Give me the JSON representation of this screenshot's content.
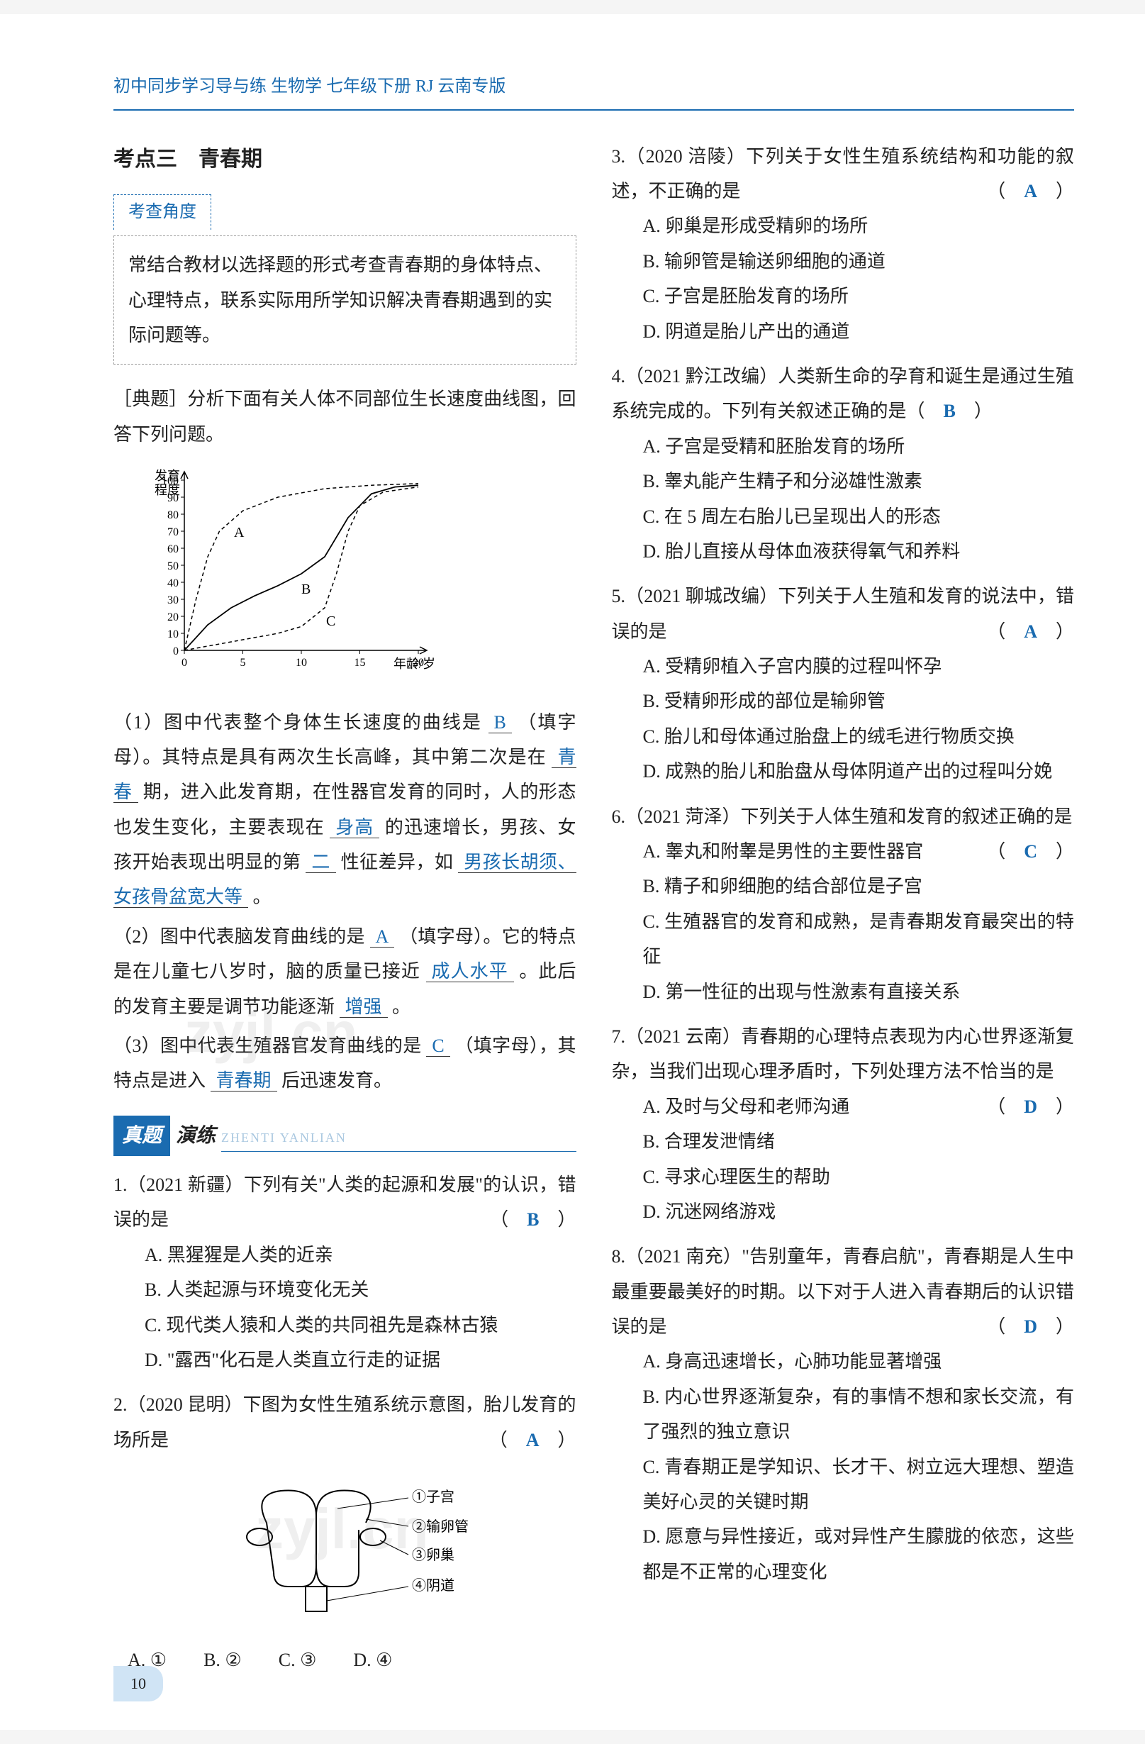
{
  "header": "初中同步学习导与练 生物学 七年级下册 RJ 云南专版",
  "page_number": "10",
  "watermark": "zyjl.cn",
  "left": {
    "kaodian_title": "考点三　青春期",
    "kaocha_label": "考查角度",
    "kaocha_text": "常结合教材以选择题的形式考查青春期的身体特点、心理特点，联系实际用所学知识解决青春期遇到的实际问题等。",
    "dianti_label": "［典题］",
    "dianti_text": "分析下面有关人体不同部位生长速度曲线图，回答下列问题。",
    "chart": {
      "type": "line",
      "y_label_top": "发育程度",
      "x_label": "年龄/岁",
      "y_ticks": [
        0,
        10,
        20,
        30,
        40,
        50,
        60,
        70,
        80,
        90,
        100
      ],
      "x_ticks": [
        0,
        5,
        10,
        15,
        20
      ],
      "series": [
        {
          "name": "A",
          "style": "dashed",
          "points": [
            [
              0,
              0
            ],
            [
              1,
              30
            ],
            [
              2,
              55
            ],
            [
              3,
              70
            ],
            [
              5,
              82
            ],
            [
              8,
              90
            ],
            [
              12,
              95
            ],
            [
              16,
              97
            ],
            [
              20,
              98
            ]
          ]
        },
        {
          "name": "B",
          "style": "solid",
          "points": [
            [
              0,
              0
            ],
            [
              2,
              15
            ],
            [
              4,
              25
            ],
            [
              6,
              32
            ],
            [
              8,
              38
            ],
            [
              10,
              45
            ],
            [
              12,
              55
            ],
            [
              14,
              78
            ],
            [
              16,
              92
            ],
            [
              18,
              96
            ],
            [
              20,
              97
            ]
          ]
        },
        {
          "name": "C",
          "style": "dashed",
          "points": [
            [
              0,
              0
            ],
            [
              4,
              5
            ],
            [
              8,
              10
            ],
            [
              10,
              14
            ],
            [
              12,
              25
            ],
            [
              13,
              45
            ],
            [
              14,
              70
            ],
            [
              15,
              85
            ],
            [
              17,
              93
            ],
            [
              20,
              96
            ]
          ]
        }
      ],
      "colors": {
        "axis": "#000",
        "line": "#000"
      }
    },
    "p1_a": "（1）图中代表整个身体生长速度的曲线是",
    "p1_blank1": "B",
    "p1_b": "（填字母）。其特点是具有两次生长高峰，其中第二次是在",
    "p1_blank2": "青春",
    "p1_c": "期，进入此发育期，在性器官发育的同时，人的形态也发生变化，主要表现在",
    "p1_blank3": "身高",
    "p1_d": "的迅速增长，男孩、女孩开始表现出明显的第",
    "p1_blank4": "二",
    "p1_e": "性征差异，如",
    "p1_blank5": "男孩长胡须、女孩骨盆宽大等",
    "p1_f": "。",
    "p2_a": "（2）图中代表脑发育曲线的是",
    "p2_blank1": "A",
    "p2_b": "（填字母）。它的特点是在儿童七八岁时，脑的质量已接近",
    "p2_blank2": "成人水平",
    "p2_c": "。此后的发育主要是调节功能逐渐",
    "p2_blank3": "增强",
    "p2_d": "。",
    "p3_a": "（3）图中代表生殖器官发育曲线的是",
    "p3_blank1": "C",
    "p3_b": "（填字母），其特点是进入",
    "p3_blank2": "青春期",
    "p3_c": "后迅速发育。",
    "zhenti_zhen": "真题",
    "zhenti_yan": "演练",
    "zhenti_pinyin": "ZHENTI YANLIAN",
    "q1": {
      "stem": "1.（2021 新疆）下列有关\"人类的起源和发展\"的认识，错误的是",
      "answer": "B",
      "opts": [
        "A. 黑猩猩是人类的近亲",
        "B. 人类起源与环境变化无关",
        "C. 现代类人猿和人类的共同祖先是森林古猿",
        "D. \"露西\"化石是人类直立行走的证据"
      ]
    },
    "q2": {
      "stem": "2.（2020 昆明）下图为女性生殖系统示意图，胎儿发育的场所是",
      "answer": "A",
      "labels": [
        "①子宫",
        "②输卵管",
        "③卵巢",
        "④阴道"
      ],
      "opts_inline": "A. ①　　B. ②　　C. ③　　D. ④"
    }
  },
  "right": {
    "q3": {
      "stem": "3.（2020 涪陵）下列关于女性生殖系统结构和功能的叙述，不正确的是",
      "answer": "A",
      "opts": [
        "A. 卵巢是形成受精卵的场所",
        "B. 输卵管是输送卵细胞的通道",
        "C. 子宫是胚胎发育的场所",
        "D. 阴道是胎儿产出的通道"
      ]
    },
    "q4": {
      "stem": "4.（2021 黔江改编）人类新生命的孕育和诞生是通过生殖系统完成的。下列有关叙述正确的是（",
      "answer": "B",
      "stem_end": "）",
      "opts": [
        "A. 子宫是受精和胚胎发育的场所",
        "B. 睾丸能产生精子和分泌雄性激素",
        "C. 在 5 周左右胎儿已呈现出人的形态",
        "D. 胎儿直接从母体血液获得氧气和养料"
      ]
    },
    "q5": {
      "stem": "5.（2021 聊城改编）下列关于人生殖和发育的说法中，错误的是",
      "answer": "A",
      "opts": [
        "A. 受精卵植入子宫内膜的过程叫怀孕",
        "B. 受精卵形成的部位是输卵管",
        "C. 胎儿和母体通过胎盘上的绒毛进行物质交换",
        "D. 成熟的胎儿和胎盘从母体阴道产出的过程叫分娩"
      ]
    },
    "q6": {
      "stem": "6.（2021 菏泽）下列关于人体生殖和发育的叙述正确的是",
      "answer": "C",
      "opts": [
        "A. 睾丸和附睾是男性的主要性器官",
        "B. 精子和卵细胞的结合部位是子宫",
        "C. 生殖器官的发育和成熟，是青春期发育最突出的特征",
        "D. 第一性征的出现与性激素有直接关系"
      ]
    },
    "q7": {
      "stem": "7.（2021 云南）青春期的心理特点表现为内心世界逐渐复杂，当我们出现心理矛盾时，下列处理方法不恰当的是",
      "answer": "D",
      "opts": [
        "A. 及时与父母和老师沟通",
        "B. 合理发泄情绪",
        "C. 寻求心理医生的帮助",
        "D. 沉迷网络游戏"
      ]
    },
    "q8": {
      "stem": "8.（2021 南充）\"告别童年，青春启航\"，青春期是人生中最重要最美好的时期。以下对于人进入青春期后的认识错误的是",
      "answer": "D",
      "opts": [
        "A. 身高迅速增长，心肺功能显著增强",
        "B. 内心世界逐渐复杂，有的事情不想和家长交流，有了强烈的独立意识",
        "C. 青春期正是学知识、长才干、树立远大理想、塑造美好心灵的关键时期",
        "D. 愿意与异性接近，或对异性产生朦胧的依恋，这些都是不正常的心理变化"
      ]
    }
  }
}
